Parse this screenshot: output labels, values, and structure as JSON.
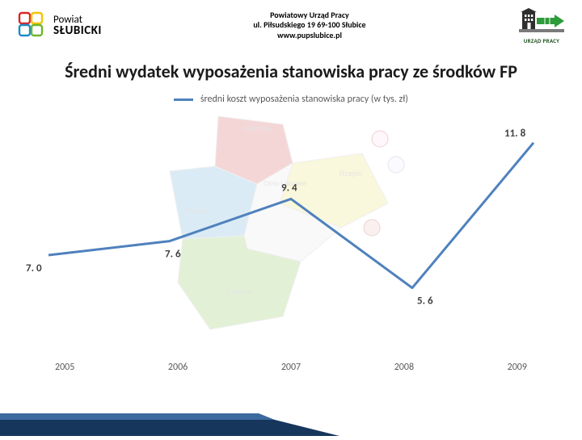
{
  "header": {
    "left_logo": {
      "line1": "Powiat",
      "line2": "SŁUBICKI",
      "colors": {
        "red": "#d9252a",
        "yellow": "#f2c400",
        "blue": "#1a8bc6",
        "green": "#6fb62c"
      }
    },
    "center": {
      "line1": "Powiatowy Urząd Pracy",
      "line2": "ul. Piłsudskiego 19  69-100 Słubice",
      "line3": "www.pupslubice.pl"
    },
    "right_logo": {
      "caption": "URZĄD PRACY",
      "building_color": "#2e2e2e",
      "arrow_color": "#2e9b3a",
      "pedestal_color": "#7a7a7a"
    }
  },
  "title": "Średni wydatek wyposażenia stanowiska pracy ze środków FP",
  "legend_label": "średni koszt wyposażenia stanowiska pracy (w tys. zł)",
  "chart": {
    "type": "line",
    "categories": [
      "2005",
      "2006",
      "2007",
      "2008",
      "2009"
    ],
    "values": [
      7.0,
      7.6,
      9.4,
      5.6,
      11.8
    ],
    "value_labels": [
      "7. 0",
      "7. 6",
      "9. 4",
      "5. 6",
      "11. 8"
    ],
    "ylim": [
      3,
      13
    ],
    "line_color": "#4f81bd",
    "line_width": 3,
    "background_color": "#ffffff",
    "label_fontsize": 13,
    "axis_fontsize": 12,
    "axis_color": "#5a5a5a"
  },
  "background_map": {
    "regions": [
      {
        "name": "Górzyca",
        "color": "#d54a4f"
      },
      {
        "name": "Rzepin",
        "color": "#e8e363"
      },
      {
        "name": "Słubice",
        "color": "#5aa6d6"
      },
      {
        "name": "Ośno Lubuskie",
        "color": "#e8e8e8"
      },
      {
        "name": "Cybinka",
        "color": "#7fc24a"
      }
    ],
    "opacity": 0.22
  },
  "footer_wedge": {
    "color": "#16365c"
  }
}
